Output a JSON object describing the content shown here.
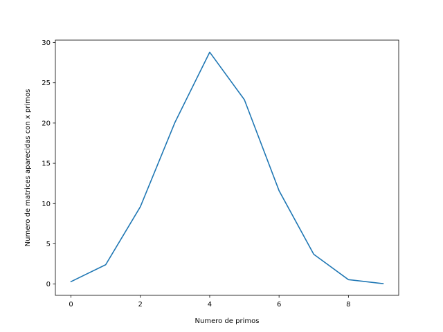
{
  "chart_data": {
    "type": "line",
    "title": "",
    "xlabel": "Numero de primos",
    "ylabel": "Numero de matrices aparecidas con x primos",
    "x": [
      0,
      1,
      2,
      3,
      4,
      5,
      6,
      7,
      8,
      9
    ],
    "series": [
      {
        "values": [
          0.3,
          2.4,
          9.6,
          20.1,
          28.8,
          22.9,
          11.6,
          3.7,
          0.55,
          0.05
        ],
        "color": "#1f77b4"
      }
    ],
    "xlim": [
      -0.45,
      9.45
    ],
    "ylim": [
      -1.4,
      30.3
    ],
    "xticks": [
      0,
      2,
      4,
      6,
      8
    ],
    "yticks": [
      0,
      5,
      10,
      15,
      20,
      25,
      30
    ],
    "grid": false,
    "legend": "none"
  }
}
